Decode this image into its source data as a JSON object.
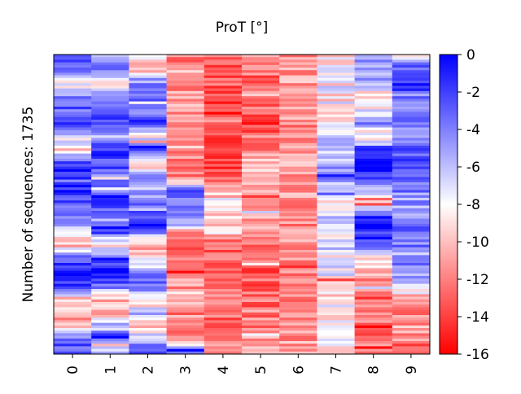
{
  "chart_data": {
    "type": "heatmap",
    "title": "ProT [°]",
    "ylabel": "Number of sequences: 1735",
    "xlabel": "",
    "categories": [
      "0",
      "1",
      "2",
      "3",
      "4",
      "5",
      "6",
      "7",
      "8",
      "9"
    ],
    "rows": 1735,
    "colorbar": {
      "range": [
        -16,
        0
      ],
      "ticks": [
        "0",
        "-2",
        "-4",
        "-6",
        "-8",
        "-10",
        "-12",
        "-14",
        "-16"
      ],
      "colors": {
        "min": "#ff0000",
        "mid": "#ffffff",
        "max": "#0000ff"
      }
    },
    "column_profiles": [
      [
        -3,
        -3,
        -9,
        -4,
        -2,
        -2,
        -7,
        -9,
        -2,
        -1,
        -1,
        -3,
        -4,
        -6,
        -11,
        -2,
        -1,
        -2,
        -10,
        -10,
        -11,
        -3,
        -3
      ],
      [
        -7,
        -3,
        -9,
        -3,
        -3,
        -3,
        -6,
        -2,
        -2,
        -5,
        -3,
        -2,
        -5,
        -2,
        -10,
        -2,
        -1,
        -3,
        -10,
        -11,
        -5,
        -2,
        -7
      ],
      [
        -9,
        -10,
        -4,
        -4,
        -4,
        -2,
        -8,
        -2,
        -11,
        -3,
        -6,
        -3,
        -3,
        -3,
        -11,
        -8,
        -5,
        -3,
        -9,
        -5,
        -10,
        -5,
        -3
      ],
      [
        -12,
        -12,
        -12,
        -11,
        -11,
        -12,
        -11,
        -11,
        -12,
        -12,
        -3,
        -3,
        -4,
        -11,
        -12,
        -13,
        -12,
        -11,
        -11,
        -11,
        -12,
        -11,
        -2
      ],
      [
        -13,
        -14,
        -13,
        -14,
        -13,
        -12,
        -14,
        -13,
        -14,
        -12,
        -10,
        -9,
        -9,
        -10,
        -13,
        -13,
        -13,
        -13,
        -12,
        -12,
        -13,
        -12,
        -11
      ],
      [
        -12,
        -12,
        -13,
        -12,
        -13,
        -14,
        -12,
        -12,
        -10,
        -10,
        -11,
        -11,
        -11,
        -10,
        -12,
        -12,
        -13,
        -13,
        -13,
        -12,
        -12,
        -11,
        -11
      ],
      [
        -11,
        -11,
        -11,
        -11,
        -11,
        -12,
        -12,
        -11,
        -11,
        -11,
        -11,
        -11,
        -12,
        -11,
        -11,
        -11,
        -12,
        -12,
        -12,
        -12,
        -12,
        -11,
        -11
      ],
      [
        -9,
        -8,
        -7,
        -9,
        -10,
        -9,
        -7,
        -6,
        -6,
        -5,
        -7,
        -9,
        -6,
        -8,
        -6,
        -8,
        -7,
        -10,
        -9,
        -8,
        -9,
        -8,
        -10
      ],
      [
        -4,
        -6,
        -5,
        -10,
        -8,
        -4,
        -10,
        -1,
        -1,
        -1,
        -6,
        -9,
        -1,
        -1,
        -2,
        -9,
        -10,
        -12,
        -13,
        -12,
        -14,
        -13,
        -12
      ],
      [
        -8,
        -2,
        -1,
        -4,
        -5,
        -3,
        -4,
        -3,
        -2,
        -3,
        -4,
        -5,
        -4,
        -3,
        -4,
        -5,
        -4,
        -6,
        -11,
        -12,
        -11,
        -12,
        -13
      ]
    ]
  }
}
